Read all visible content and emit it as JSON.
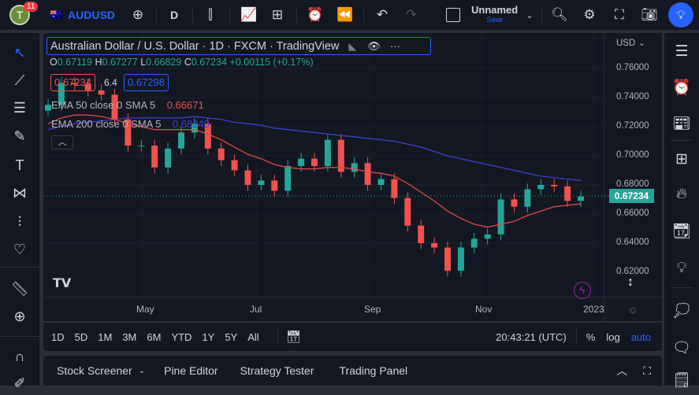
{
  "topbar": {
    "avatar_letter": "T",
    "notifications": "11",
    "symbol": "AUDUSD",
    "interval": "D",
    "layout_name": "Unnamed",
    "save_label": "Save"
  },
  "legend": {
    "title": "Australian Dollar / U.S. Dollar · 1D · FXCM · TradingView",
    "o_label": "O",
    "o": "0.67119",
    "h_label": "H",
    "h": "0.67277",
    "l_label": "L",
    "l": "0.66829",
    "c_label": "C",
    "c": "0.67234",
    "change": "+0.00115 (+0.17%)",
    "bid": "0.67234",
    "spread": "6.4",
    "ask": "0.67298",
    "ema50_label": "EMA 50 close 0 SMA 5",
    "ema50_value": "0.66671",
    "ema200_label": "EMA 200 close 0 SMA 5",
    "ema200_value": "0.68240"
  },
  "price_axis": {
    "currency": "USD",
    "ticks": [
      "0.76000",
      "0.74000",
      "0.72000",
      "0.70000",
      "0.68000",
      "0.66000",
      "0.64000",
      "0.62000"
    ],
    "current": "0.67234"
  },
  "time_axis": [
    "May",
    "Jul",
    "Sep",
    "Nov",
    "2023"
  ],
  "range_bar": {
    "ranges": [
      "1D",
      "5D",
      "1M",
      "3M",
      "6M",
      "YTD",
      "1Y",
      "5Y",
      "All"
    ],
    "time": "20:43:21 (UTC)",
    "percent": "%",
    "log": "log",
    "auto": "auto"
  },
  "bottom_panel": {
    "tabs": [
      "Stock Screener",
      "Pine Editor",
      "Strategy Tester",
      "Trading Panel"
    ]
  },
  "colors": {
    "up": "#26a69a",
    "down": "#ef5350",
    "ema50": "#e04a4a",
    "ema200": "#3f3fd6",
    "accent": "#2962ff"
  },
  "chart_data": {
    "type": "candlestick",
    "ylim": [
      0.61,
      0.77
    ],
    "closes": [
      0.735,
      0.75,
      0.749,
      0.745,
      0.742,
      0.725,
      0.707,
      0.707,
      0.692,
      0.705,
      0.716,
      0.722,
      0.705,
      0.697,
      0.69,
      0.68,
      0.683,
      0.676,
      0.693,
      0.698,
      0.693,
      0.711,
      0.689,
      0.695,
      0.68,
      0.684,
      0.671,
      0.652,
      0.64,
      0.637,
      0.621,
      0.637,
      0.643,
      0.646,
      0.67,
      0.665,
      0.677,
      0.68,
      0.679,
      0.669,
      0.672
    ],
    "ema50": [
      0.722,
      0.726,
      0.728,
      0.728,
      0.727,
      0.725,
      0.722,
      0.72,
      0.718,
      0.718,
      0.718,
      0.718,
      0.715,
      0.711,
      0.706,
      0.701,
      0.698,
      0.694,
      0.692,
      0.691,
      0.691,
      0.692,
      0.692,
      0.691,
      0.689,
      0.688,
      0.686,
      0.681,
      0.675,
      0.669,
      0.662,
      0.657,
      0.653,
      0.651,
      0.653,
      0.655,
      0.659,
      0.662,
      0.665,
      0.666,
      0.667
    ],
    "ema200": [
      0.718,
      0.72,
      0.722,
      0.723,
      0.724,
      0.725,
      0.726,
      0.726,
      0.726,
      0.726,
      0.726,
      0.727,
      0.726,
      0.725,
      0.723,
      0.722,
      0.721,
      0.719,
      0.718,
      0.717,
      0.716,
      0.715,
      0.714,
      0.713,
      0.712,
      0.711,
      0.71,
      0.708,
      0.706,
      0.703,
      0.7,
      0.698,
      0.696,
      0.694,
      0.692,
      0.69,
      0.688,
      0.686,
      0.685,
      0.684,
      0.683
    ]
  }
}
